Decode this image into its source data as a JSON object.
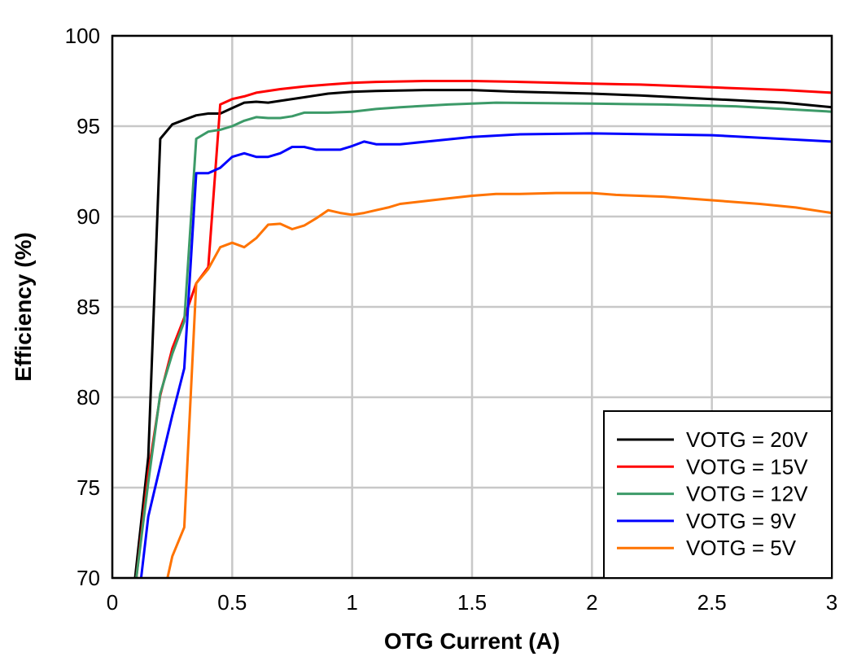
{
  "chart_data": {
    "type": "line",
    "title": "",
    "xlabel": "OTG Current (A)",
    "ylabel": "Efficiency (%)",
    "xlim": [
      0,
      3
    ],
    "ylim": [
      70,
      100
    ],
    "xticks": [
      "0",
      "0.5",
      "1",
      "1.5",
      "2",
      "2.5",
      "3"
    ],
    "yticks": [
      "70",
      "75",
      "80",
      "85",
      "90",
      "95",
      "100"
    ],
    "grid": true,
    "legend_position": "bottom-right",
    "series": [
      {
        "name": "VOTG = 20V",
        "color": "#000000",
        "x": [
          0.095,
          0.15,
          0.2,
          0.25,
          0.3,
          0.35,
          0.4,
          0.45,
          0.5,
          0.55,
          0.6,
          0.65,
          0.7,
          0.8,
          0.9,
          1.0,
          1.1,
          1.3,
          1.5,
          1.7,
          2.0,
          2.2,
          2.5,
          2.8,
          3.0
        ],
        "y": [
          70,
          76.7,
          94.3,
          95.1,
          95.35,
          95.6,
          95.7,
          95.7,
          96.0,
          96.3,
          96.35,
          96.3,
          96.4,
          96.6,
          96.8,
          96.9,
          96.95,
          97.0,
          97.0,
          96.9,
          96.8,
          96.7,
          96.5,
          96.3,
          96.05
        ]
      },
      {
        "name": "VOTG = 15V",
        "color": "#ff0000",
        "x": [
          0.1,
          0.15,
          0.2,
          0.25,
          0.3,
          0.35,
          0.4,
          0.45,
          0.5,
          0.55,
          0.6,
          0.7,
          0.8,
          0.9,
          1.0,
          1.1,
          1.3,
          1.5,
          1.7,
          2.0,
          2.2,
          2.5,
          2.8,
          3.0
        ],
        "y": [
          70,
          75.8,
          80.1,
          82.7,
          84.4,
          86.3,
          87.2,
          96.2,
          96.5,
          96.65,
          96.85,
          97.05,
          97.2,
          97.3,
          97.4,
          97.45,
          97.5,
          97.5,
          97.45,
          97.35,
          97.3,
          97.15,
          97.0,
          96.85
        ]
      },
      {
        "name": "VOTG = 12V",
        "color": "#3c9a68",
        "x": [
          0.1,
          0.15,
          0.2,
          0.25,
          0.3,
          0.35,
          0.4,
          0.45,
          0.5,
          0.55,
          0.6,
          0.65,
          0.7,
          0.75,
          0.8,
          0.9,
          1.0,
          1.1,
          1.2,
          1.4,
          1.6,
          2.0,
          2.3,
          2.6,
          3.0
        ],
        "y": [
          70,
          75.3,
          80.2,
          82.4,
          84.2,
          94.3,
          94.7,
          94.8,
          95.0,
          95.3,
          95.5,
          95.45,
          95.45,
          95.55,
          95.75,
          95.75,
          95.8,
          95.95,
          96.05,
          96.2,
          96.3,
          96.25,
          96.2,
          96.1,
          95.8
        ]
      },
      {
        "name": "VOTG = 9V",
        "color": "#0000ff",
        "x": [
          0.12,
          0.15,
          0.2,
          0.25,
          0.3,
          0.35,
          0.4,
          0.45,
          0.5,
          0.55,
          0.6,
          0.65,
          0.7,
          0.75,
          0.8,
          0.85,
          0.9,
          0.95,
          1.0,
          1.05,
          1.1,
          1.2,
          1.35,
          1.5,
          1.7,
          2.0,
          2.5,
          3.0
        ],
        "y": [
          70,
          73.4,
          76.2,
          79.0,
          81.6,
          92.4,
          92.4,
          92.7,
          93.3,
          93.5,
          93.3,
          93.3,
          93.5,
          93.85,
          93.85,
          93.7,
          93.7,
          93.7,
          93.9,
          94.15,
          94.0,
          94.0,
          94.2,
          94.4,
          94.55,
          94.6,
          94.5,
          94.15
        ]
      },
      {
        "name": "VOTG = 5V",
        "color": "#ff7300",
        "x": [
          0.23,
          0.25,
          0.3,
          0.35,
          0.4,
          0.45,
          0.5,
          0.55,
          0.6,
          0.65,
          0.7,
          0.75,
          0.8,
          0.85,
          0.9,
          0.95,
          1.0,
          1.05,
          1.1,
          1.15,
          1.2,
          1.3,
          1.4,
          1.5,
          1.6,
          1.7,
          1.85,
          2.0,
          2.1,
          2.3,
          2.5,
          2.7,
          2.85,
          3.0
        ],
        "y": [
          70,
          71.2,
          72.8,
          86.3,
          87.1,
          88.3,
          88.55,
          88.3,
          88.8,
          89.55,
          89.6,
          89.3,
          89.5,
          89.9,
          90.35,
          90.2,
          90.1,
          90.2,
          90.35,
          90.5,
          90.7,
          90.85,
          91.0,
          91.15,
          91.25,
          91.25,
          91.3,
          91.3,
          91.2,
          91.1,
          90.9,
          90.7,
          90.5,
          90.2
        ]
      }
    ]
  }
}
